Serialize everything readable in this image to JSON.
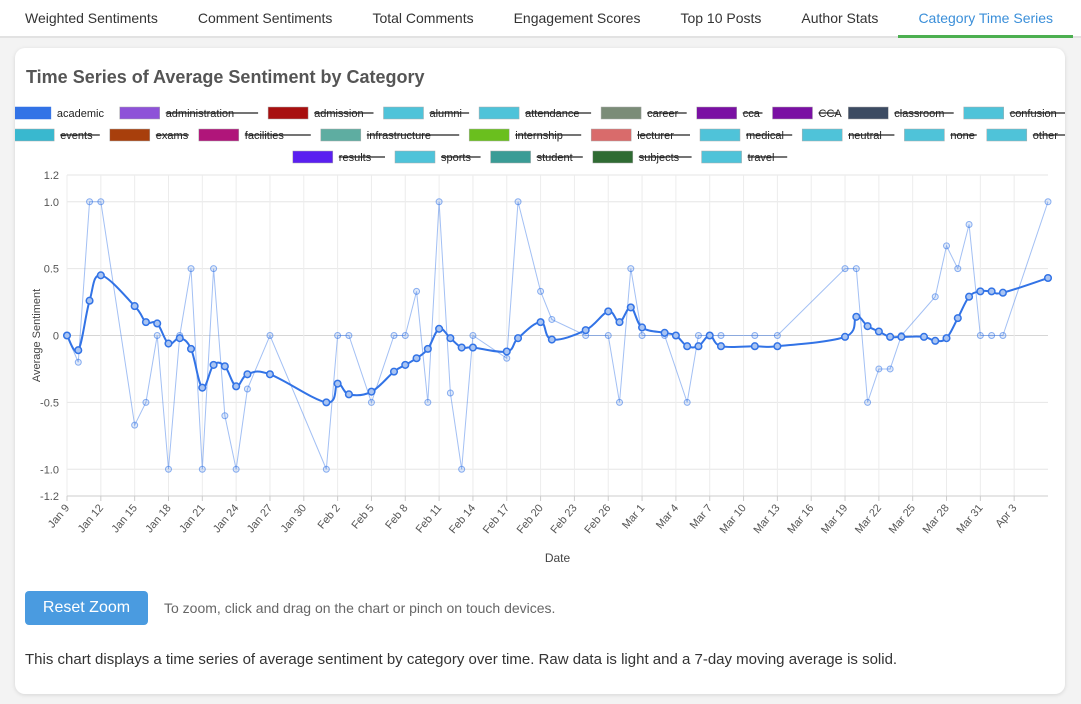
{
  "tabs": [
    {
      "label": "Weighted Sentiments",
      "active": false
    },
    {
      "label": "Comment Sentiments",
      "active": false
    },
    {
      "label": "Total Comments",
      "active": false
    },
    {
      "label": "Engagement Scores",
      "active": false
    },
    {
      "label": "Top 10 Posts",
      "active": false
    },
    {
      "label": "Author Stats",
      "active": false
    },
    {
      "label": "Category Time Series",
      "active": true
    }
  ],
  "card": {
    "title": "Time Series of Average Sentiment by Category",
    "reset_label": "Reset Zoom",
    "zoom_hint": "To zoom, click and drag on the chart or pinch on touch devices.",
    "description": "This chart displays a time series of average sentiment by category over time. Raw data is light and a 7-day moving average is solid."
  },
  "chart_data": {
    "type": "line",
    "xlabel": "Date",
    "ylabel": "Average Sentiment",
    "ylim": [
      -1.2,
      1.2
    ],
    "yticks": [
      -1.2,
      -1.0,
      -0.5,
      0,
      0.5,
      1.0,
      1.2
    ],
    "ytick_labels": [
      "-1.2",
      "-1.0",
      "-0.5",
      "0",
      "0.5",
      "1.0",
      "1.2"
    ],
    "x_tick_labels": [
      "Jan 9",
      "Jan 12",
      "Jan 15",
      "Jan 18",
      "Jan 21",
      "Jan 24",
      "Jan 27",
      "Jan 30",
      "Feb 2",
      "Feb 5",
      "Feb 8",
      "Feb 11",
      "Feb 14",
      "Feb 17",
      "Feb 20",
      "Feb 23",
      "Feb 26",
      "Mar 1",
      "Mar 4",
      "Mar 7",
      "Mar 10",
      "Mar 13",
      "Mar 16",
      "Mar 19",
      "Mar 22",
      "Mar 25",
      "Mar 28",
      "Mar 31",
      "Apr 3"
    ],
    "x_tick_positions": [
      0,
      3,
      6,
      9,
      12,
      15,
      18,
      21,
      24,
      27,
      30,
      33,
      36,
      39,
      42,
      45,
      48,
      51,
      54,
      57,
      60,
      63,
      66,
      69,
      72,
      75,
      78,
      81,
      84
    ],
    "x_range": [
      0,
      87
    ],
    "grid": true,
    "legend_position": "top",
    "legend": [
      {
        "name": "academic",
        "color": "#3273e6",
        "hidden": false
      },
      {
        "name": "administration",
        "color": "#8e52d8",
        "hidden": true
      },
      {
        "name": "admission",
        "color": "#a80f0f",
        "hidden": true
      },
      {
        "name": "alumni",
        "color": "#4fc3d9",
        "hidden": true
      },
      {
        "name": "attendance",
        "color": "#4fc3d9",
        "hidden": true
      },
      {
        "name": "career",
        "color": "#7b8c78",
        "hidden": true
      },
      {
        "name": "cca",
        "color": "#7a10a3",
        "hidden": true
      },
      {
        "name": "CCA",
        "color": "#7a10a3",
        "hidden": true
      },
      {
        "name": "classroom",
        "color": "#3c4b62",
        "hidden": true
      },
      {
        "name": "confusion",
        "color": "#4fc3d9",
        "hidden": true
      },
      {
        "name": "events",
        "color": "#39b8cf",
        "hidden": true
      },
      {
        "name": "exams",
        "color": "#a83f0c",
        "hidden": true
      },
      {
        "name": "facilities",
        "color": "#b0157a",
        "hidden": true
      },
      {
        "name": "infrastructure",
        "color": "#5eada1",
        "hidden": true
      },
      {
        "name": "internship",
        "color": "#6abf1e",
        "hidden": true
      },
      {
        "name": "lecturer",
        "color": "#d96b6b",
        "hidden": true
      },
      {
        "name": "medical",
        "color": "#4fc3d9",
        "hidden": true
      },
      {
        "name": "neutral",
        "color": "#4fc3d9",
        "hidden": true
      },
      {
        "name": "none",
        "color": "#4fc3d9",
        "hidden": true
      },
      {
        "name": "other",
        "color": "#4fc3d9",
        "hidden": true
      },
      {
        "name": "results",
        "color": "#5a1ff0",
        "hidden": true
      },
      {
        "name": "sports",
        "color": "#4fc3d9",
        "hidden": true
      },
      {
        "name": "student",
        "color": "#3a9c96",
        "hidden": true
      },
      {
        "name": "subjects",
        "color": "#2f6b33",
        "hidden": true
      },
      {
        "name": "travel",
        "color": "#4fc3d9",
        "hidden": true
      }
    ],
    "series": [
      {
        "name": "academic",
        "style": "raw",
        "color": "#3273e6",
        "points": [
          [
            0,
            0
          ],
          [
            1,
            -0.2
          ],
          [
            2,
            1.0
          ],
          [
            3,
            1.0
          ],
          [
            6,
            -0.67
          ],
          [
            7,
            -0.5
          ],
          [
            8,
            0
          ],
          [
            9,
            -1.0
          ],
          [
            10,
            0
          ],
          [
            11,
            0.5
          ],
          [
            12,
            -1.0
          ],
          [
            13,
            0.5
          ],
          [
            14,
            -0.6
          ],
          [
            15,
            -1.0
          ],
          [
            16,
            -0.4
          ],
          [
            18,
            0
          ],
          [
            23,
            -1.0
          ],
          [
            24,
            0
          ],
          [
            25,
            0
          ],
          [
            27,
            -0.5
          ],
          [
            29,
            0
          ],
          [
            30,
            0
          ],
          [
            31,
            0.33
          ],
          [
            32,
            -0.5
          ],
          [
            33,
            1.0
          ],
          [
            34,
            -0.43
          ],
          [
            35,
            -1.0
          ],
          [
            36,
            0
          ],
          [
            39,
            -0.17
          ],
          [
            40,
            1.0
          ],
          [
            42,
            0.33
          ],
          [
            43,
            0.12
          ],
          [
            46,
            0
          ],
          [
            48,
            0
          ],
          [
            49,
            -0.5
          ],
          [
            50,
            0.5
          ],
          [
            51,
            0
          ],
          [
            53,
            0
          ],
          [
            55,
            -0.5
          ],
          [
            56,
            0
          ],
          [
            57,
            0
          ],
          [
            58,
            0
          ],
          [
            61,
            0
          ],
          [
            63,
            0
          ],
          [
            69,
            0.5
          ],
          [
            70,
            0.5
          ],
          [
            71,
            -0.5
          ],
          [
            72,
            -0.25
          ],
          [
            73,
            -0.25
          ],
          [
            74,
            0
          ],
          [
            77,
            0.29
          ],
          [
            78,
            0.67
          ],
          [
            79,
            0.5
          ],
          [
            80,
            0.83
          ],
          [
            81,
            0
          ],
          [
            82,
            0
          ],
          [
            83,
            0
          ],
          [
            87,
            1.0
          ]
        ]
      },
      {
        "name": "academic",
        "style": "moving-average",
        "color": "#3273e6",
        "points": [
          [
            0,
            0
          ],
          [
            1,
            -0.11
          ],
          [
            2,
            0.26
          ],
          [
            3,
            0.45
          ],
          [
            6,
            0.22
          ],
          [
            7,
            0.1
          ],
          [
            8,
            0.09
          ],
          [
            9,
            -0.06
          ],
          [
            10,
            -0.02
          ],
          [
            11,
            -0.1
          ],
          [
            12,
            -0.39
          ],
          [
            13,
            -0.22
          ],
          [
            14,
            -0.23
          ],
          [
            15,
            -0.38
          ],
          [
            16,
            -0.29
          ],
          [
            18,
            -0.29
          ],
          [
            23,
            -0.5
          ],
          [
            24,
            -0.36
          ],
          [
            25,
            -0.44
          ],
          [
            27,
            -0.42
          ],
          [
            29,
            -0.27
          ],
          [
            30,
            -0.22
          ],
          [
            31,
            -0.17
          ],
          [
            32,
            -0.1
          ],
          [
            33,
            0.05
          ],
          [
            34,
            -0.02
          ],
          [
            35,
            -0.09
          ],
          [
            36,
            -0.09
          ],
          [
            39,
            -0.12
          ],
          [
            40,
            -0.02
          ],
          [
            42,
            0.1
          ],
          [
            43,
            -0.03
          ],
          [
            46,
            0.04
          ],
          [
            48,
            0.18
          ],
          [
            49,
            0.1
          ],
          [
            50,
            0.21
          ],
          [
            51,
            0.06
          ],
          [
            53,
            0.02
          ],
          [
            54,
            0.0
          ],
          [
            55,
            -0.08
          ],
          [
            56,
            -0.08
          ],
          [
            57,
            0
          ],
          [
            58,
            -0.08
          ],
          [
            61,
            -0.08
          ],
          [
            63,
            -0.08
          ],
          [
            69,
            -0.01
          ],
          [
            70,
            0.14
          ],
          [
            71,
            0.07
          ],
          [
            72,
            0.03
          ],
          [
            73,
            -0.01
          ],
          [
            74,
            -0.01
          ],
          [
            76,
            -0.01
          ],
          [
            77,
            -0.04
          ],
          [
            78,
            -0.02
          ],
          [
            79,
            0.13
          ],
          [
            80,
            0.29
          ],
          [
            81,
            0.33
          ],
          [
            82,
            0.33
          ],
          [
            83,
            0.32
          ],
          [
            87,
            0.43
          ]
        ]
      }
    ]
  }
}
